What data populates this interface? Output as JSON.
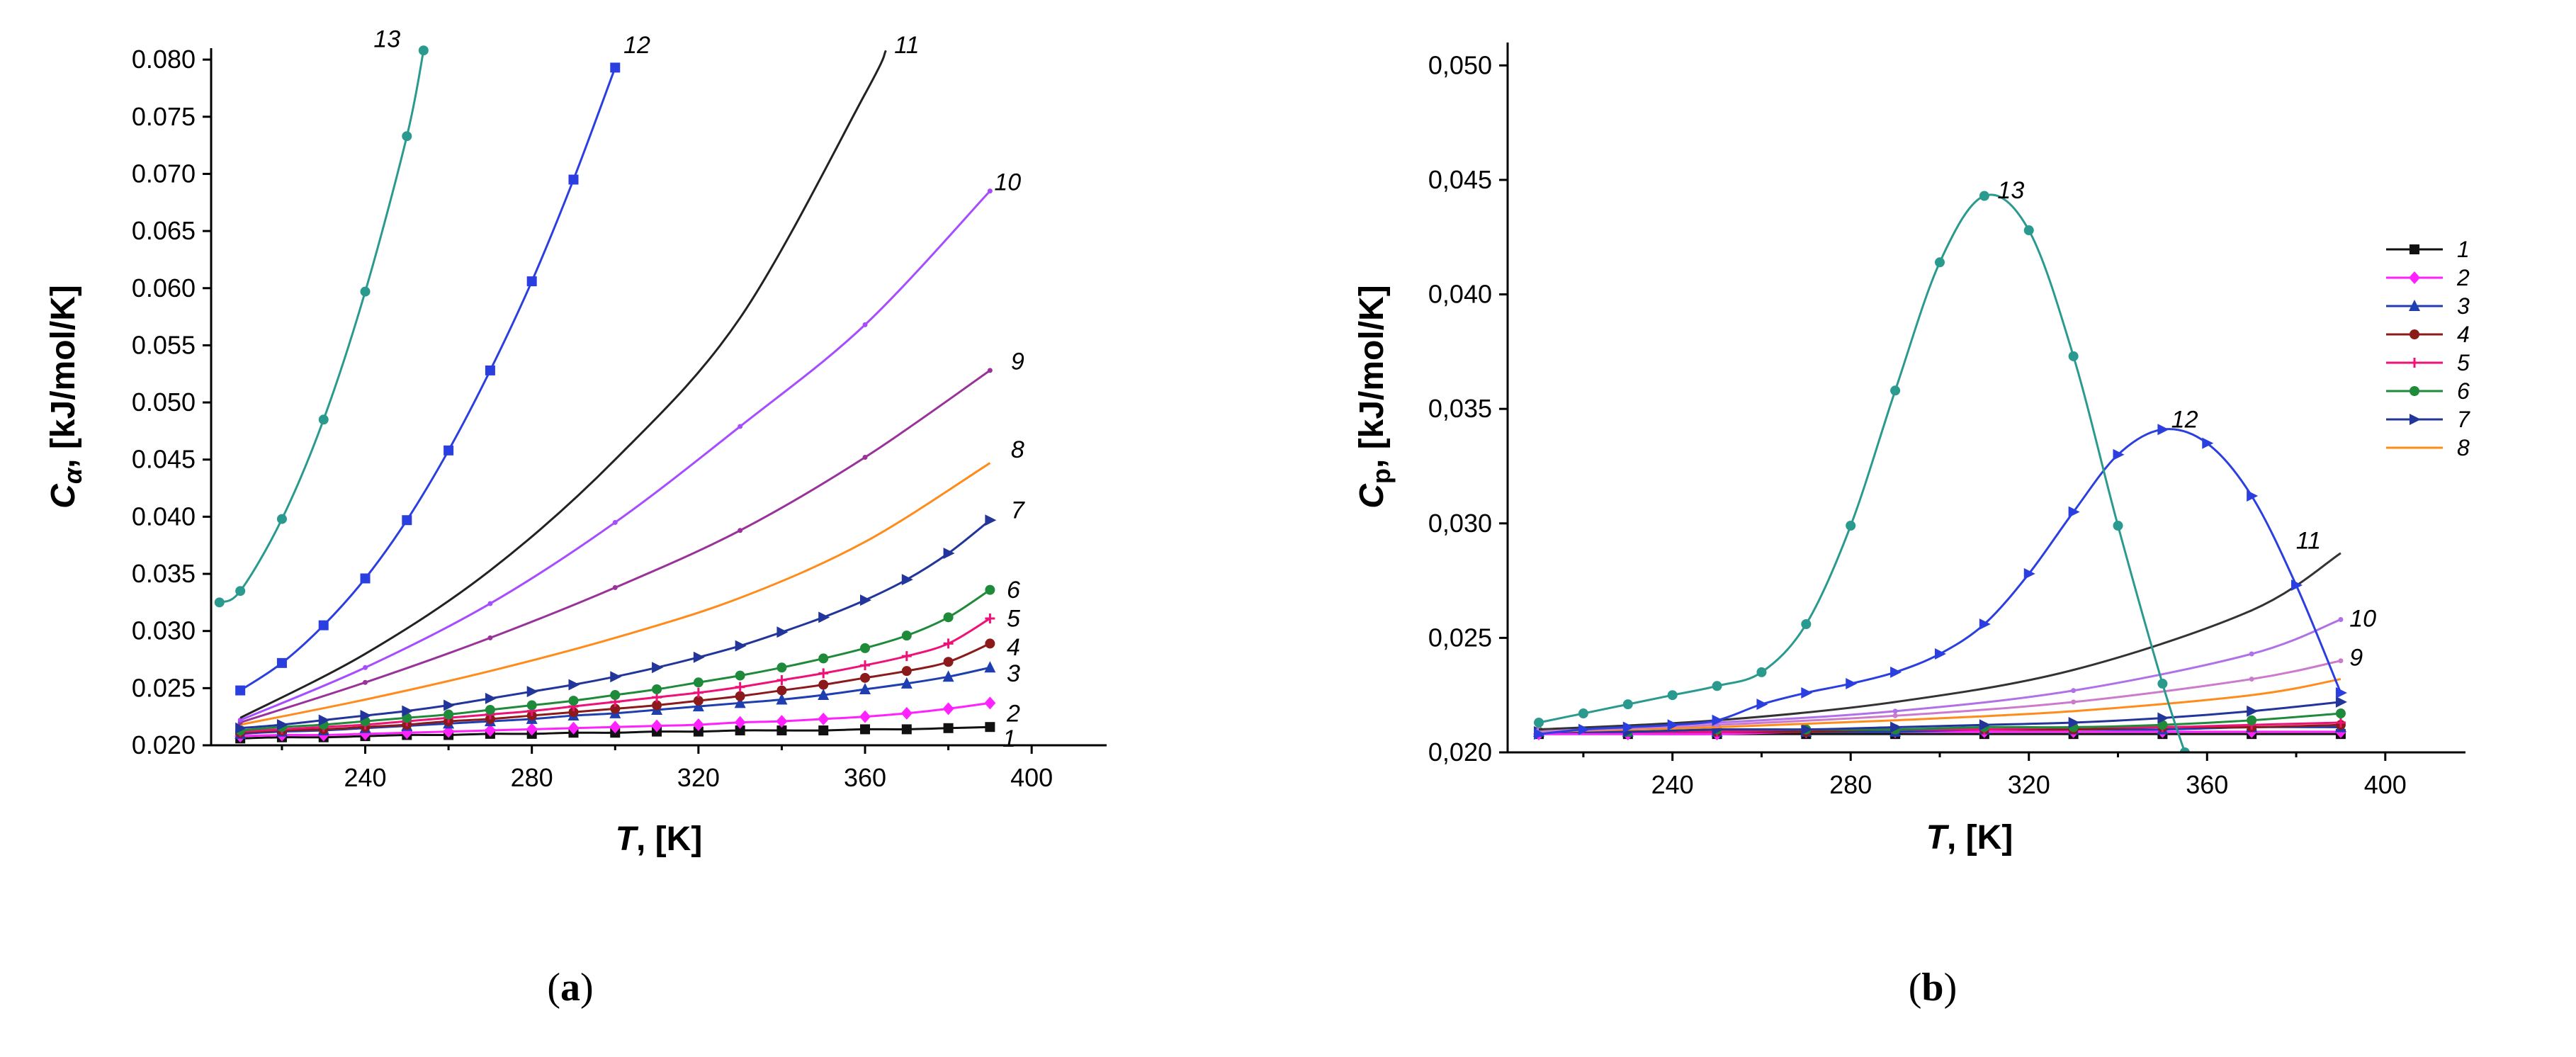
{
  "figure_labels": [
    "(",
    "a",
    ")",
    "(",
    "b",
    ")"
  ],
  "chart_data": [
    {
      "type": "line",
      "panel": "a",
      "panel_label": "(a)",
      "xlabel": "T, [K]",
      "xlabel_parts": [
        "T",
        ", [K]"
      ],
      "ylabel": "Cα, [kJ/mol/K]",
      "ylabel_parts": [
        "C",
        "α",
        ", [kJ/mol/K]"
      ],
      "xlim": [
        203,
        418
      ],
      "ylim": [
        0.02,
        0.081
      ],
      "xticks": [
        240,
        280,
        320,
        360,
        400
      ],
      "yticks": [
        0.02,
        0.025,
        0.03,
        0.035,
        0.04,
        0.045,
        0.05,
        0.055,
        0.06,
        0.065,
        0.07,
        0.075,
        0.08
      ],
      "ytick_labels": [
        "0.020",
        "0.025",
        "0.030",
        "0.035",
        "0.040",
        "0.045",
        "0.050",
        "0.055",
        "0.060",
        "0.065",
        "0.070",
        "0.075",
        "0.080"
      ],
      "grid": false,
      "series": [
        {
          "name": "1",
          "color": "#111111",
          "marker": "square",
          "label_at": [
            392,
            0.0205
          ],
          "x": [
            210,
            220,
            230,
            240,
            250,
            260,
            270,
            280,
            290,
            300,
            310,
            320,
            330,
            340,
            350,
            360,
            370,
            380,
            390
          ],
          "y": [
            0.0206,
            0.0207,
            0.0207,
            0.0208,
            0.0209,
            0.0209,
            0.021,
            0.021,
            0.0211,
            0.0211,
            0.0212,
            0.0212,
            0.0213,
            0.0213,
            0.0213,
            0.0214,
            0.0214,
            0.0215,
            0.0216
          ]
        },
        {
          "name": "2",
          "color": "#ff22ff",
          "marker": "diamond",
          "label_at": [
            393,
            0.0227
          ],
          "x": [
            210,
            220,
            230,
            240,
            250,
            260,
            270,
            280,
            290,
            300,
            310,
            320,
            330,
            340,
            350,
            360,
            370,
            380,
            390
          ],
          "y": [
            0.0208,
            0.0209,
            0.0209,
            0.021,
            0.0211,
            0.0212,
            0.0213,
            0.0214,
            0.0215,
            0.0216,
            0.0217,
            0.0218,
            0.022,
            0.0221,
            0.0223,
            0.0225,
            0.0228,
            0.0232,
            0.0237
          ]
        },
        {
          "name": "3",
          "color": "#1f3fb0",
          "marker": "triangle",
          "label_at": [
            393,
            0.0262
          ],
          "x": [
            210,
            220,
            230,
            240,
            250,
            260,
            270,
            280,
            290,
            300,
            310,
            320,
            330,
            340,
            350,
            360,
            370,
            380,
            390
          ],
          "y": [
            0.021,
            0.0212,
            0.0213,
            0.0215,
            0.0217,
            0.0219,
            0.0221,
            0.0223,
            0.0226,
            0.0228,
            0.0231,
            0.0234,
            0.0237,
            0.024,
            0.0244,
            0.0249,
            0.0254,
            0.026,
            0.0268
          ]
        },
        {
          "name": "4",
          "color": "#8b1a1a",
          "marker": "circle",
          "label_at": [
            393,
            0.0285
          ],
          "x": [
            210,
            220,
            230,
            240,
            250,
            260,
            270,
            280,
            290,
            300,
            310,
            320,
            330,
            340,
            350,
            360,
            370,
            380,
            390
          ],
          "y": [
            0.0211,
            0.0213,
            0.0214,
            0.0216,
            0.0218,
            0.0221,
            0.0223,
            0.0226,
            0.0229,
            0.0232,
            0.0235,
            0.0239,
            0.0243,
            0.0248,
            0.0253,
            0.0259,
            0.0265,
            0.0273,
            0.0289
          ]
        },
        {
          "name": "5",
          "color": "#ee1177",
          "marker": "plus",
          "label_at": [
            393,
            0.031
          ],
          "x": [
            210,
            220,
            230,
            240,
            250,
            260,
            270,
            280,
            290,
            300,
            310,
            320,
            330,
            340,
            350,
            360,
            370,
            380,
            390
          ],
          "y": [
            0.0212,
            0.0214,
            0.0216,
            0.0218,
            0.0221,
            0.0224,
            0.0227,
            0.023,
            0.0234,
            0.0238,
            0.0242,
            0.0246,
            0.0251,
            0.0257,
            0.0263,
            0.027,
            0.0278,
            0.0289,
            0.0311
          ]
        },
        {
          "name": "6",
          "color": "#1f8a3a",
          "marker": "circle",
          "label_at": [
            393,
            0.0335
          ],
          "x": [
            210,
            220,
            230,
            240,
            250,
            260,
            270,
            280,
            290,
            300,
            310,
            320,
            330,
            340,
            350,
            360,
            370,
            380,
            390
          ],
          "y": [
            0.0213,
            0.0216,
            0.0218,
            0.0221,
            0.0224,
            0.0227,
            0.0231,
            0.0235,
            0.0239,
            0.0244,
            0.0249,
            0.0255,
            0.0261,
            0.0268,
            0.0276,
            0.0285,
            0.0296,
            0.0312,
            0.0336
          ]
        },
        {
          "name": "7",
          "color": "#22359a",
          "marker": "triangle-right",
          "label_at": [
            394,
            0.0405
          ],
          "x": [
            210,
            220,
            230,
            240,
            250,
            260,
            270,
            280,
            290,
            300,
            310,
            320,
            330,
            340,
            350,
            360,
            370,
            380,
            390
          ],
          "y": [
            0.0215,
            0.0218,
            0.0222,
            0.0226,
            0.023,
            0.0235,
            0.0241,
            0.0247,
            0.0253,
            0.026,
            0.0268,
            0.0277,
            0.0287,
            0.0299,
            0.0312,
            0.0327,
            0.0345,
            0.0368,
            0.0397
          ]
        },
        {
          "name": "8",
          "color": "#ff8c1a",
          "marker": "none",
          "label_at": [
            394,
            0.0458
          ],
          "x": [
            210,
            240,
            270,
            300,
            330,
            360,
            390
          ],
          "y": [
            0.0218,
            0.024,
            0.0265,
            0.0294,
            0.0329,
            0.0378,
            0.0447
          ]
        },
        {
          "name": "9",
          "color": "#993399",
          "marker": "tick",
          "label_at": [
            394,
            0.0535
          ],
          "x": [
            210,
            240,
            270,
            300,
            330,
            360,
            390
          ],
          "y": [
            0.022,
            0.0255,
            0.0294,
            0.0338,
            0.0388,
            0.0452,
            0.0528
          ]
        },
        {
          "name": "10",
          "color": "#a64dff",
          "marker": "tick",
          "label_at": [
            390,
            0.0692
          ],
          "x": [
            210,
            240,
            270,
            300,
            330,
            360,
            390
          ],
          "y": [
            0.0222,
            0.0268,
            0.0324,
            0.0395,
            0.0479,
            0.0568,
            0.0685
          ]
        },
        {
          "name": "11",
          "color": "#222222",
          "marker": "none",
          "label_at": [
            366,
            0.0812
          ],
          "x": [
            210,
            240,
            270,
            300,
            330,
            360,
            365
          ],
          "y": [
            0.0224,
            0.028,
            0.0353,
            0.045,
            0.0574,
            0.077,
            0.0808
          ]
        },
        {
          "name": "12",
          "color": "#2b3fe0",
          "marker": "square",
          "label_at": [
            301,
            0.0812
          ],
          "x": [
            210,
            220,
            230,
            240,
            250,
            260,
            270,
            280,
            290,
            300
          ],
          "y": [
            0.0248,
            0.0272,
            0.0305,
            0.0346,
            0.0397,
            0.0458,
            0.0528,
            0.0606,
            0.0695,
            0.0793
          ]
        },
        {
          "name": "13",
          "color": "#2a9a8e",
          "marker": "circle",
          "label_at": [
            241,
            0.0817
          ],
          "x": [
            205,
            210,
            220,
            230,
            240,
            250,
            254
          ],
          "y": [
            0.0325,
            0.0335,
            0.0398,
            0.0485,
            0.0597,
            0.0733,
            0.0808
          ]
        }
      ]
    },
    {
      "type": "line",
      "panel": "b",
      "panel_label": "(b)",
      "xlabel": "T, [K]",
      "xlabel_parts": [
        "T",
        ", [K]"
      ],
      "ylabel": "Cp, [kJ/mol/K]",
      "ylabel_parts": [
        "C",
        "p",
        ", [kJ/mol/K]"
      ],
      "xlim": [
        203,
        418
      ],
      "ylim": [
        0.02,
        0.051
      ],
      "xticks": [
        240,
        280,
        320,
        360,
        400
      ],
      "yticks": [
        0.02,
        0.025,
        0.03,
        0.035,
        0.04,
        0.045,
        0.05
      ],
      "ytick_labels": [
        "0,020",
        "0,025",
        "0,030",
        "0,035",
        "0,040",
        "0,045",
        "0,050"
      ],
      "grid": false,
      "legend": {
        "position": "right",
        "entries": [
          "1",
          "2",
          "3",
          "4",
          "5",
          "6",
          "7",
          "8"
        ]
      },
      "series": [
        {
          "name": "1",
          "color": "#111111",
          "marker": "square",
          "x": [
            210,
            230,
            250,
            270,
            290,
            310,
            330,
            350,
            370,
            390
          ],
          "y": [
            0.0208,
            0.0208,
            0.0208,
            0.0208,
            0.0208,
            0.0208,
            0.0208,
            0.0208,
            0.0208,
            0.0208
          ]
        },
        {
          "name": "2",
          "color": "#ff22ff",
          "marker": "diamond",
          "x": [
            210,
            230,
            250,
            270,
            290,
            310,
            330,
            350,
            370,
            390
          ],
          "y": [
            0.0208,
            0.0208,
            0.0208,
            0.0209,
            0.0209,
            0.0209,
            0.0209,
            0.0209,
            0.0209,
            0.0209
          ]
        },
        {
          "name": "3",
          "color": "#1f3fb0",
          "marker": "triangle",
          "x": [
            210,
            230,
            250,
            270,
            290,
            310,
            330,
            350,
            370,
            390
          ],
          "y": [
            0.0209,
            0.0209,
            0.0209,
            0.0209,
            0.0209,
            0.021,
            0.021,
            0.021,
            0.0211,
            0.0211
          ]
        },
        {
          "name": "4",
          "color": "#8b1a1a",
          "marker": "circle",
          "x": [
            210,
            230,
            250,
            270,
            290,
            310,
            330,
            350,
            370,
            390
          ],
          "y": [
            0.0209,
            0.0209,
            0.0209,
            0.0209,
            0.021,
            0.021,
            0.021,
            0.0211,
            0.0211,
            0.0212
          ]
        },
        {
          "name": "5",
          "color": "#ee1177",
          "marker": "plus",
          "x": [
            210,
            230,
            250,
            270,
            290,
            310,
            330,
            350,
            370,
            390
          ],
          "y": [
            0.0209,
            0.0209,
            0.0209,
            0.021,
            0.021,
            0.021,
            0.0211,
            0.0211,
            0.0212,
            0.0213
          ]
        },
        {
          "name": "6",
          "color": "#1f8a3a",
          "marker": "circle",
          "x": [
            210,
            230,
            250,
            270,
            290,
            310,
            330,
            350,
            370,
            390
          ],
          "y": [
            0.0209,
            0.0209,
            0.021,
            0.021,
            0.021,
            0.0211,
            0.0211,
            0.0212,
            0.0214,
            0.0217
          ]
        },
        {
          "name": "7",
          "color": "#22359a",
          "marker": "triangle-right",
          "x": [
            210,
            230,
            250,
            270,
            290,
            310,
            330,
            350,
            370,
            390
          ],
          "y": [
            0.0209,
            0.0209,
            0.021,
            0.021,
            0.0211,
            0.0212,
            0.0213,
            0.0215,
            0.0218,
            0.0222
          ]
        },
        {
          "name": "8",
          "color": "#ff8c1a",
          "marker": "none",
          "x": [
            210,
            250,
            290,
            330,
            370,
            390
          ],
          "y": [
            0.0209,
            0.0211,
            0.0214,
            0.0218,
            0.0225,
            0.0232
          ]
        },
        {
          "name": "9",
          "color": "#cc7acc",
          "marker": "tick",
          "label_at": [
            391,
            0.0241
          ],
          "x": [
            210,
            250,
            290,
            330,
            370,
            390
          ],
          "y": [
            0.0209,
            0.0212,
            0.0216,
            0.0222,
            0.0232,
            0.024
          ]
        },
        {
          "name": "10",
          "color": "#b070e8",
          "marker": "tick",
          "label_at": [
            391,
            0.0258
          ],
          "x": [
            210,
            250,
            290,
            330,
            370,
            390
          ],
          "y": [
            0.021,
            0.0213,
            0.0218,
            0.0227,
            0.0243,
            0.0258
          ]
        },
        {
          "name": "11",
          "color": "#333333",
          "marker": "none",
          "label_at": [
            379,
            0.0292
          ],
          "x": [
            210,
            250,
            290,
            330,
            370,
            390
          ],
          "y": [
            0.021,
            0.0214,
            0.0222,
            0.0236,
            0.0262,
            0.0287
          ]
        },
        {
          "name": "12",
          "color": "#2b3fe0",
          "marker": "triangle-right",
          "label_at": [
            351,
            0.0345
          ],
          "x": [
            210,
            220,
            230,
            240,
            250,
            260,
            270,
            280,
            290,
            300,
            310,
            320,
            330,
            340,
            350,
            360,
            370,
            380,
            390
          ],
          "y": [
            0.0208,
            0.021,
            0.0211,
            0.0212,
            0.0214,
            0.0221,
            0.0226,
            0.023,
            0.0235,
            0.0243,
            0.0256,
            0.0278,
            0.0305,
            0.033,
            0.0341,
            0.0335,
            0.0312,
            0.0273,
            0.0226
          ]
        },
        {
          "name": "13",
          "color": "#2a9a8e",
          "marker": "circle",
          "label_at": [
            312,
            0.0445
          ],
          "x": [
            210,
            220,
            230,
            240,
            250,
            260,
            270,
            280,
            290,
            300,
            310,
            320,
            330,
            340,
            350,
            355
          ],
          "y": [
            0.0213,
            0.0217,
            0.0221,
            0.0225,
            0.0229,
            0.0235,
            0.0256,
            0.0299,
            0.0358,
            0.0414,
            0.0443,
            0.0428,
            0.0373,
            0.0299,
            0.023,
            0.02
          ]
        }
      ]
    }
  ]
}
